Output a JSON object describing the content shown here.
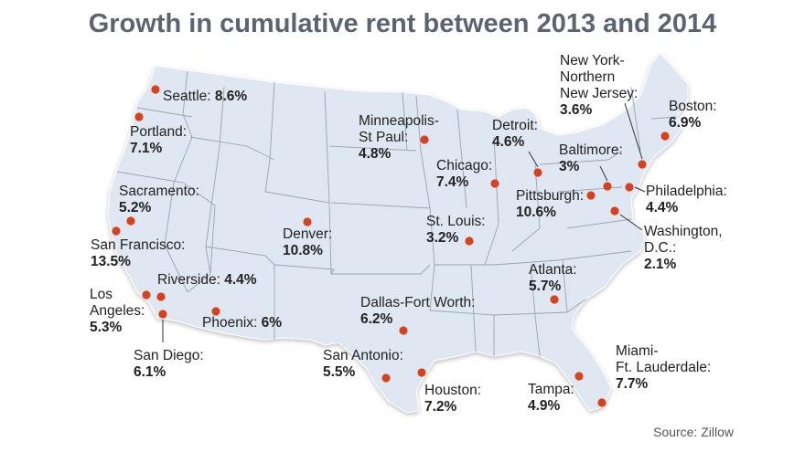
{
  "title": "Growth in cumulative rent between 2013 and 2014",
  "source": "Source: Zillow",
  "colors": {
    "land": "#dfe8f2",
    "state_line": "#9aa4ae",
    "marker": "#d6421e",
    "title": "#5b6470"
  },
  "cities": [
    {
      "id": "seattle",
      "name": "Seattle:",
      "value": "8.6%"
    },
    {
      "id": "portland",
      "name": "Portland:",
      "value": "7.1%"
    },
    {
      "id": "sacramento",
      "name": "Sacramento:",
      "value": "5.2%"
    },
    {
      "id": "san-francisco",
      "name": "San Francisco:",
      "value": "13.5%"
    },
    {
      "id": "riverside",
      "name": "Riverside:",
      "value": "4.4%"
    },
    {
      "id": "los-angeles",
      "name": [
        "Los",
        "Angeles:"
      ],
      "value": "5.3%"
    },
    {
      "id": "san-diego",
      "name": "San Diego:",
      "value": "6.1%"
    },
    {
      "id": "phoenix",
      "name": "Phoenix:",
      "value": "6%"
    },
    {
      "id": "denver",
      "name": "Denver:",
      "value": "10.8%"
    },
    {
      "id": "minneapolis",
      "name": [
        "Minneapolis-",
        "St Paul:"
      ],
      "value": "4.8%"
    },
    {
      "id": "dallas",
      "name": "Dallas-Fort Worth:",
      "value": "6.2%"
    },
    {
      "id": "san-antonio",
      "name": "San Antonio:",
      "value": "5.5%"
    },
    {
      "id": "houston",
      "name": "Houston:",
      "value": "7.2%"
    },
    {
      "id": "st-louis",
      "name": "St. Louis:",
      "value": "3.2%"
    },
    {
      "id": "chicago",
      "name": "Chicago:",
      "value": "7.4%"
    },
    {
      "id": "detroit",
      "name": "Detroit:",
      "value": "4.6%"
    },
    {
      "id": "pittsburgh",
      "name": "Pittsburgh:",
      "value": "10.6%"
    },
    {
      "id": "atlanta",
      "name": "Atlanta:",
      "value": "5.7%"
    },
    {
      "id": "tampa",
      "name": "Tampa:",
      "value": "4.9%"
    },
    {
      "id": "miami",
      "name": [
        "Miami-",
        "Ft. Lauderdale:"
      ],
      "value": "7.7%"
    },
    {
      "id": "baltimore",
      "name": "Baltimore:",
      "value": "3%"
    },
    {
      "id": "new-york",
      "name": [
        "New York-",
        "Northern",
        "New Jersey:"
      ],
      "value": "3.6%"
    },
    {
      "id": "boston",
      "name": "Boston:",
      "value": "6.9%"
    },
    {
      "id": "philadelphia",
      "name": "Philadelphia:",
      "value": "4.4%"
    },
    {
      "id": "washington",
      "name": [
        "Washington,",
        "D.C.:"
      ],
      "value": "2.1%"
    }
  ]
}
